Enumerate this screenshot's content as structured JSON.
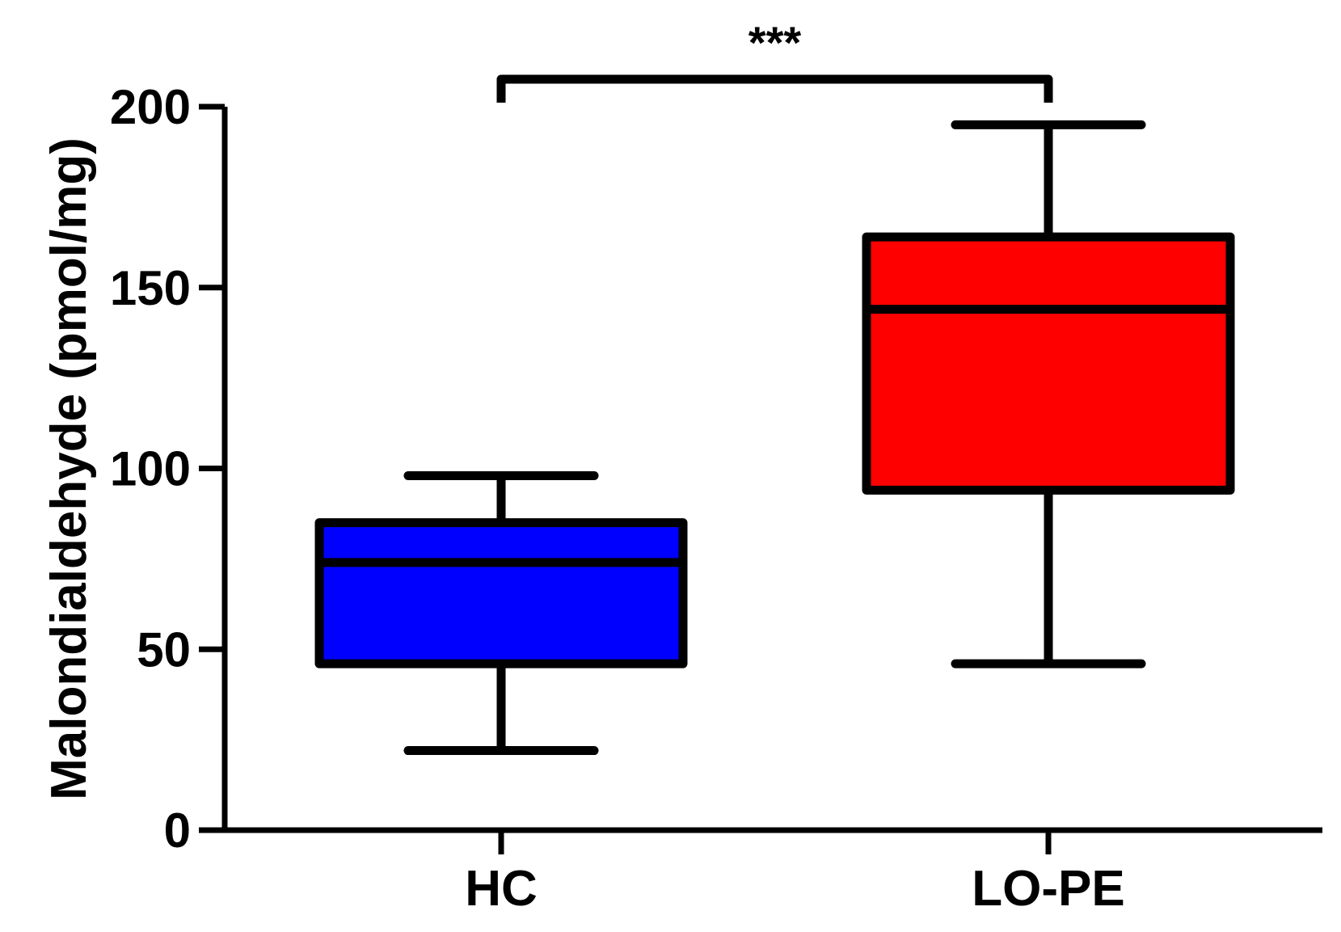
{
  "chart_data": {
    "type": "box",
    "ylabel": "Malondialdehyde (pmol/mg)",
    "xlabel": "",
    "ylim": [
      0,
      200
    ],
    "yticks": [
      0,
      50,
      100,
      150,
      200
    ],
    "ytick_labels": [
      "0",
      "50",
      "100",
      "150",
      "200"
    ],
    "categories": [
      "HC",
      "LO-PE"
    ],
    "boxes": [
      {
        "category": "HC",
        "min": 22,
        "q1": 46,
        "median": 74,
        "q3": 85,
        "max": 98,
        "color": "#0000ff"
      },
      {
        "category": "LO-PE",
        "min": 46,
        "q1": 94,
        "median": 144,
        "q3": 164,
        "max": 195,
        "color": "#ff0000"
      }
    ],
    "significance": {
      "between": [
        "HC",
        "LO-PE"
      ],
      "label": "***"
    },
    "grid": false,
    "legend": "none"
  }
}
